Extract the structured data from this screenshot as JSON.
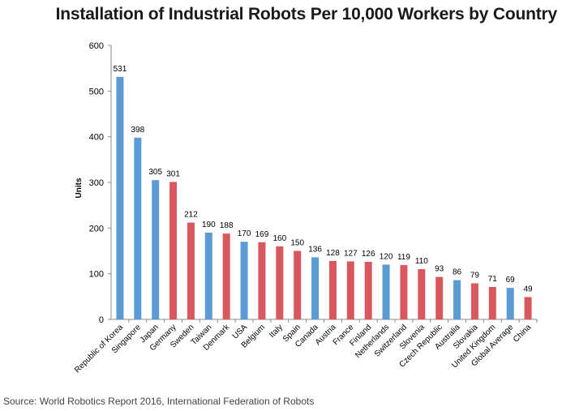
{
  "chart_data": {
    "type": "bar",
    "title": "Installation of Industrial Robots Per 10,000 Workers by Country",
    "xlabel": "",
    "ylabel": "Units",
    "ylim": [
      0,
      600
    ],
    "yticks": [
      0,
      100,
      200,
      300,
      400,
      500,
      600
    ],
    "categories": [
      "Republic of Korea",
      "Singapore",
      "Japan",
      "Germany",
      "Sweden",
      "Taiwan",
      "Denmark",
      "USA",
      "Belgium",
      "Italy",
      "Spain",
      "Canada",
      "Austria",
      "France",
      "Finland",
      "Netherlands",
      "Switzerland",
      "Slovenia",
      "Czech Republic",
      "Australia",
      "Slovakia",
      "United Kingdom",
      "Global Average",
      "China"
    ],
    "values": [
      531,
      398,
      305,
      301,
      212,
      190,
      188,
      170,
      169,
      160,
      150,
      136,
      128,
      127,
      126,
      120,
      119,
      110,
      93,
      86,
      79,
      71,
      69,
      49
    ],
    "bar_colors": [
      "#5b9bd5",
      "#5b9bd5",
      "#5b9bd5",
      "#d9585e",
      "#d9585e",
      "#5b9bd5",
      "#d9585e",
      "#5b9bd5",
      "#d9585e",
      "#d9585e",
      "#d9585e",
      "#5b9bd5",
      "#d9585e",
      "#d9585e",
      "#d9585e",
      "#5b9bd5",
      "#d9585e",
      "#d9585e",
      "#d9585e",
      "#5b9bd5",
      "#d9585e",
      "#d9585e",
      "#5b9bd5",
      "#d9585e"
    ],
    "grid": false,
    "legend": "none"
  },
  "source": "Source: World Robotics Report 2016, International Federation of Robots"
}
